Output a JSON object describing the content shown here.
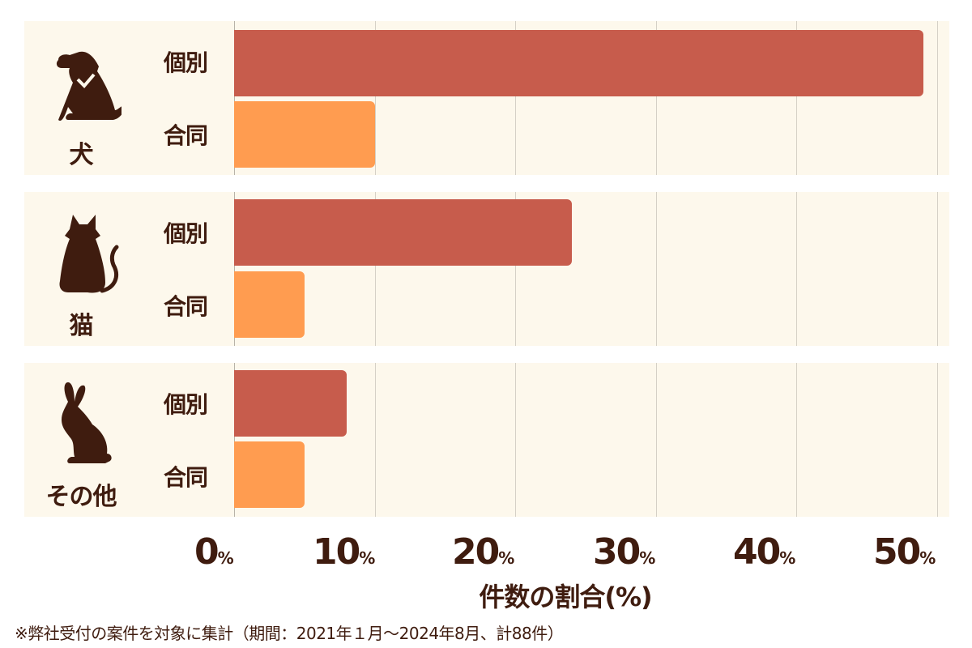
{
  "chart_data": {
    "type": "bar",
    "orientation": "horizontal",
    "title": "",
    "xlabel": "件数の割合(%)",
    "ylabel": "",
    "xlim": [
      0,
      50
    ],
    "x_ticks": [
      "0%",
      "10%",
      "20%",
      "30%",
      "40%",
      "50%"
    ],
    "grid": true,
    "groups": [
      "犬",
      "猫",
      "その他"
    ],
    "categories": [
      "個別",
      "合同"
    ],
    "series": [
      {
        "name": "個別",
        "color": "#c75c4c",
        "values": [
          49,
          24,
          8
        ]
      },
      {
        "name": "合同",
        "color": "#ff9c50",
        "values": [
          10,
          5,
          5
        ]
      }
    ],
    "footnote": "※弊社受付の案件を対象に集計（期間：2021年１月〜2024年8月、計88件）"
  },
  "groups": [
    {
      "icon": "dog-icon",
      "name": "犬",
      "ind_label": "個別",
      "joint_label": "合同",
      "ind_value": 49,
      "joint_value": 10
    },
    {
      "icon": "cat-icon",
      "name": "猫",
      "ind_label": "個別",
      "joint_label": "合同",
      "ind_value": 24,
      "joint_value": 5
    },
    {
      "icon": "rabbit-icon",
      "name": "その他",
      "ind_label": "個別",
      "joint_label": "合同",
      "ind_value": 8,
      "joint_value": 5
    }
  ],
  "axis": {
    "ticks": [
      {
        "num": "0",
        "unit": "%"
      },
      {
        "num": "10",
        "unit": "%"
      },
      {
        "num": "20",
        "unit": "%"
      },
      {
        "num": "30",
        "unit": "%"
      },
      {
        "num": "40",
        "unit": "%"
      },
      {
        "num": "50",
        "unit": "%"
      }
    ],
    "label": "件数の割合(%)"
  },
  "footnote": "※弊社受付の案件を対象に集計（期間：2021年１月〜2024年8月、計88件）",
  "colors": {
    "individual": "#c75c4c",
    "joint": "#ff9c50",
    "text": "#3f1c0f",
    "panel": "#fdf8ec"
  }
}
